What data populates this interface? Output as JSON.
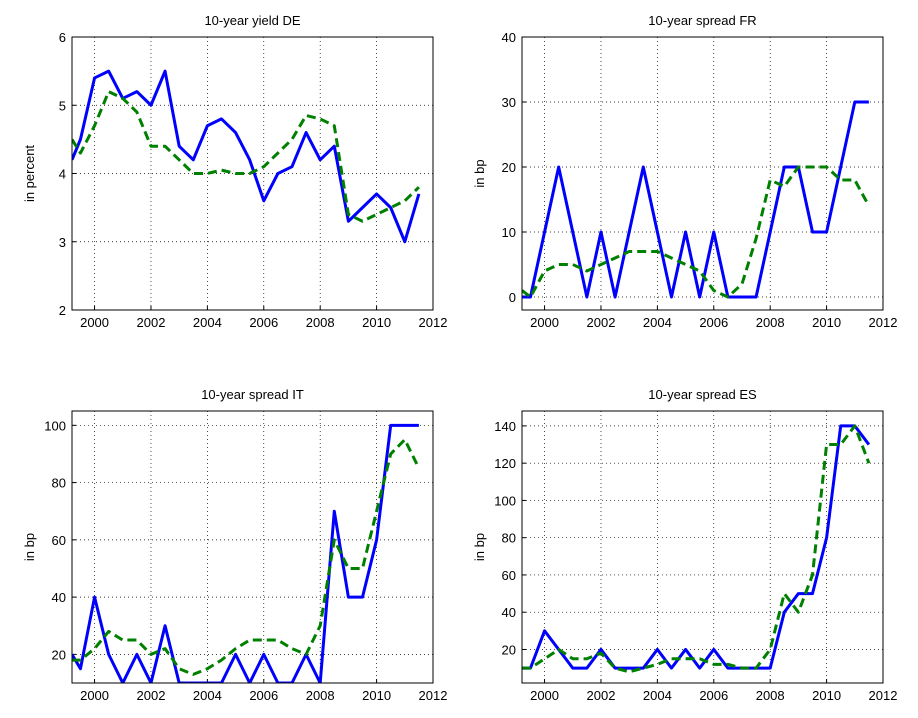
{
  "chart_data": [
    {
      "type": "line",
      "title": "10-year yield DE",
      "ylabel": "in percent",
      "x": [
        1999.2,
        1999.5,
        2000,
        2000.5,
        2001,
        2001.5,
        2002,
        2002.5,
        2003,
        2003.5,
        2004,
        2004.5,
        2005,
        2005.5,
        2006,
        2006.5,
        2007,
        2007.5,
        2008,
        2008.5,
        2009,
        2009.5,
        2010,
        2010.5,
        2011,
        2011.5
      ],
      "series": [
        {
          "color": "#0000ff",
          "dashed": false,
          "values": [
            4.2,
            4.5,
            5.4,
            5.5,
            5.1,
            5.2,
            5.0,
            5.5,
            4.4,
            4.2,
            4.7,
            4.8,
            4.6,
            4.2,
            3.6,
            4.0,
            4.1,
            4.6,
            4.2,
            4.4,
            3.3,
            3.5,
            3.7,
            3.5,
            3.0,
            3.7
          ]
        },
        {
          "color": "#008000",
          "dashed": true,
          "values": [
            4.5,
            4.3,
            4.7,
            5.2,
            5.1,
            4.9,
            4.4,
            4.4,
            4.2,
            4.0,
            4.0,
            4.05,
            4.0,
            4.0,
            4.1,
            4.3,
            4.5,
            4.85,
            4.8,
            4.7,
            3.4,
            3.3,
            3.4,
            3.5,
            3.6,
            3.8
          ]
        }
      ],
      "xlim": [
        1999.2,
        2012
      ],
      "xticks": [
        2000,
        2002,
        2004,
        2006,
        2008,
        2010,
        2012
      ],
      "ylim": [
        2,
        6
      ],
      "yticks": [
        2,
        3,
        4,
        5,
        6
      ],
      "grid": true
    },
    {
      "type": "line",
      "title": "10-year spread FR",
      "ylabel": "in bp",
      "x": [
        1999.2,
        1999.5,
        2000,
        2000.5,
        2001,
        2001.5,
        2002,
        2002.5,
        2003,
        2003.5,
        2004,
        2004.5,
        2005,
        2005.5,
        2006,
        2006.5,
        2007,
        2007.5,
        2008,
        2008.5,
        2009,
        2009.5,
        2010,
        2010.5,
        2011,
        2011.5
      ],
      "series": [
        {
          "color": "#0000ff",
          "dashed": false,
          "values": [
            0,
            0,
            10,
            20,
            10,
            0,
            10,
            0,
            10,
            20,
            10,
            0,
            10,
            0,
            10,
            0,
            0,
            0,
            10,
            20,
            20,
            10,
            10,
            20,
            30,
            30
          ]
        },
        {
          "color": "#008000",
          "dashed": true,
          "values": [
            1,
            0,
            4,
            5,
            5,
            4,
            5,
            6,
            7,
            7,
            7,
            6,
            5,
            4,
            1,
            0,
            2,
            9,
            18,
            17,
            20,
            20,
            20,
            18,
            18,
            14
          ]
        }
      ],
      "xlim": [
        1999.2,
        2012
      ],
      "xticks": [
        2000,
        2002,
        2004,
        2006,
        2008,
        2010,
        2012
      ],
      "ylim": [
        -2,
        40
      ],
      "yticks": [
        0,
        10,
        20,
        30,
        40
      ],
      "grid": true
    },
    {
      "type": "line",
      "title": "10-year spread IT",
      "ylabel": "in bp",
      "x": [
        1999.2,
        1999.5,
        2000,
        2000.5,
        2001,
        2001.5,
        2002,
        2002.5,
        2003,
        2003.5,
        2004,
        2004.5,
        2005,
        2005.5,
        2006,
        2006.5,
        2007,
        2007.5,
        2008,
        2008.5,
        2009,
        2009.5,
        2010,
        2010.5,
        2011,
        2011.5
      ],
      "series": [
        {
          "color": "#0000ff",
          "dashed": false,
          "values": [
            20,
            15,
            40,
            20,
            10,
            20,
            10,
            30,
            10,
            10,
            10,
            10,
            20,
            10,
            20,
            10,
            10,
            20,
            10,
            70,
            40,
            40,
            60,
            100,
            100,
            100
          ]
        },
        {
          "color": "#008000",
          "dashed": true,
          "values": [
            18,
            18,
            22,
            28,
            25,
            25,
            20,
            22,
            15,
            13,
            15,
            18,
            22,
            25,
            25,
            25,
            22,
            20,
            30,
            60,
            50,
            50,
            70,
            90,
            95,
            85
          ]
        }
      ],
      "xlim": [
        1999.2,
        2012
      ],
      "xticks": [
        2000,
        2002,
        2004,
        2006,
        2008,
        2010,
        2012
      ],
      "ylim": [
        10,
        105
      ],
      "yticks": [
        20,
        40,
        60,
        80,
        100
      ],
      "grid": true
    },
    {
      "type": "line",
      "title": "10-year spread ES",
      "ylabel": "in bp",
      "x": [
        1999.2,
        1999.5,
        2000,
        2000.5,
        2001,
        2001.5,
        2002,
        2002.5,
        2003,
        2003.5,
        2004,
        2004.5,
        2005,
        2005.5,
        2006,
        2006.5,
        2007,
        2007.5,
        2008,
        2008.5,
        2009,
        2009.5,
        2010,
        2010.5,
        2011,
        2011.5
      ],
      "series": [
        {
          "color": "#0000ff",
          "dashed": false,
          "values": [
            10,
            10,
            30,
            20,
            10,
            10,
            20,
            10,
            10,
            10,
            20,
            10,
            20,
            10,
            20,
            10,
            10,
            10,
            10,
            40,
            50,
            50,
            80,
            140,
            140,
            130
          ]
        },
        {
          "color": "#008000",
          "dashed": true,
          "values": [
            10,
            10,
            15,
            20,
            15,
            15,
            18,
            10,
            8,
            10,
            12,
            15,
            15,
            15,
            12,
            12,
            10,
            10,
            20,
            50,
            40,
            60,
            130,
            130,
            140,
            120
          ]
        }
      ],
      "xlim": [
        1999.2,
        2012
      ],
      "xticks": [
        2000,
        2002,
        2004,
        2006,
        2008,
        2010,
        2012
      ],
      "ylim": [
        2,
        148
      ],
      "yticks": [
        20,
        40,
        60,
        80,
        100,
        120,
        140
      ],
      "grid": true
    }
  ]
}
